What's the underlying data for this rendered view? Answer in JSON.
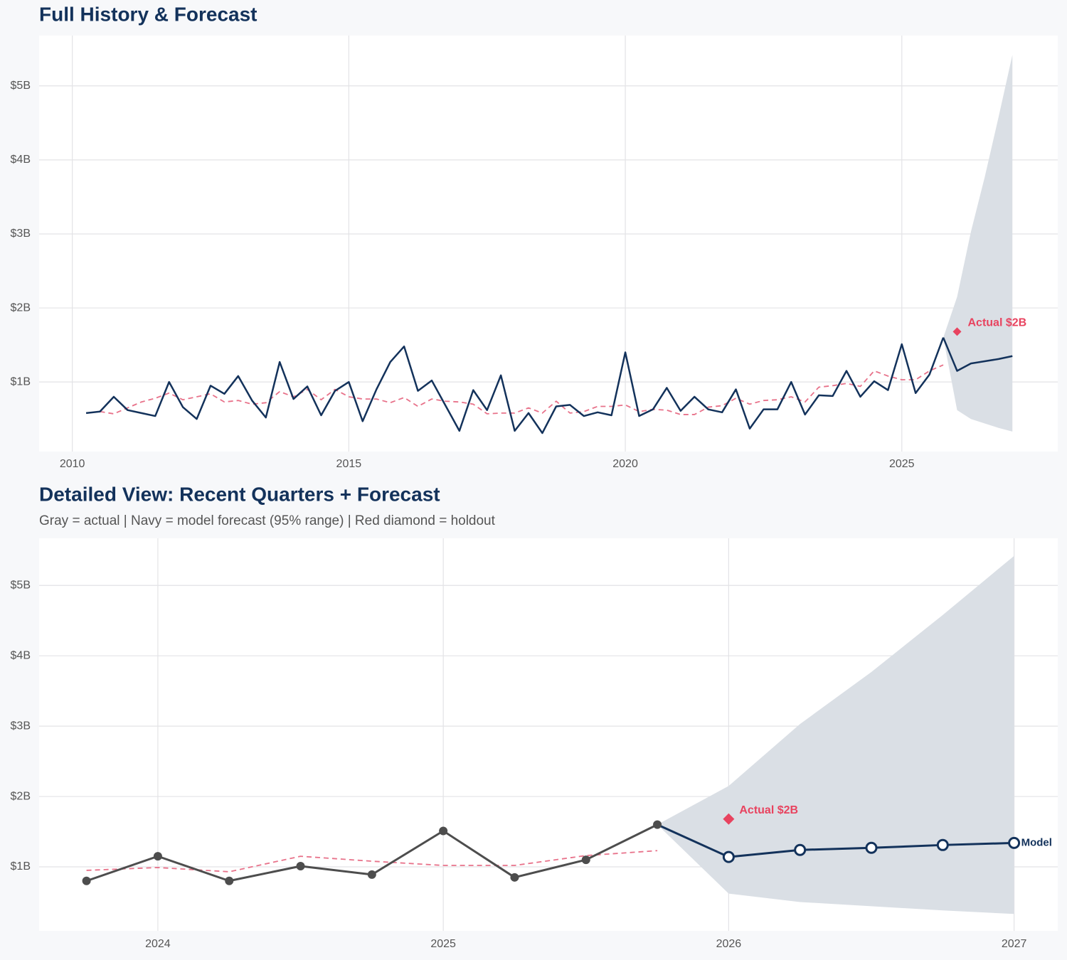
{
  "chart_data": [
    {
      "type": "line",
      "title": "Full History & Forecast",
      "x": [
        2010.25,
        2010.5,
        2010.75,
        2011.0,
        2011.25,
        2011.5,
        2011.75,
        2012.0,
        2012.25,
        2012.5,
        2012.75,
        2013.0,
        2013.25,
        2013.5,
        2013.75,
        2014.0,
        2014.25,
        2014.5,
        2014.75,
        2015.0,
        2015.25,
        2015.5,
        2015.75,
        2016.0,
        2016.25,
        2016.5,
        2016.75,
        2017.0,
        2017.25,
        2017.5,
        2017.75,
        2018.0,
        2018.25,
        2018.5,
        2018.75,
        2019.0,
        2019.25,
        2019.5,
        2019.75,
        2020.0,
        2020.25,
        2020.5,
        2020.75,
        2021.0,
        2021.25,
        2021.5,
        2021.75,
        2022.0,
        2022.25,
        2022.5,
        2022.75,
        2023.0,
        2023.25,
        2023.5,
        2023.75,
        2024.0,
        2024.25,
        2024.5,
        2024.75,
        2025.0,
        2025.25,
        2025.5,
        2025.75,
        2026.0,
        2026.25,
        2026.5,
        2026.75,
        2027.0
      ],
      "xlim": [
        2009.4,
        2027.82
      ],
      "xticks": [
        2010,
        2015,
        2020,
        2025
      ],
      "ylim": [
        0.06,
        5.68
      ],
      "yticks": [
        {
          "value": 1,
          "label": "$1B"
        },
        {
          "value": 2,
          "label": "$2B"
        },
        {
          "value": 3,
          "label": "$3B"
        },
        {
          "value": 4,
          "label": "$4B"
        },
        {
          "value": 5,
          "label": "$5B"
        }
      ],
      "grid": true,
      "band": {
        "color": "#dadfe5",
        "lower": [
          null,
          null,
          null,
          null,
          null,
          null,
          null,
          null,
          null,
          null,
          null,
          null,
          null,
          null,
          null,
          null,
          null,
          null,
          null,
          null,
          null,
          null,
          null,
          null,
          null,
          null,
          null,
          null,
          null,
          null,
          null,
          null,
          null,
          null,
          null,
          null,
          null,
          null,
          null,
          null,
          null,
          null,
          null,
          null,
          null,
          null,
          null,
          null,
          null,
          null,
          null,
          null,
          null,
          null,
          null,
          null,
          null,
          null,
          null,
          null,
          null,
          null,
          1.6,
          0.62,
          0.5,
          0.44,
          0.38,
          0.33
        ],
        "upper": [
          null,
          null,
          null,
          null,
          null,
          null,
          null,
          null,
          null,
          null,
          null,
          null,
          null,
          null,
          null,
          null,
          null,
          null,
          null,
          null,
          null,
          null,
          null,
          null,
          null,
          null,
          null,
          null,
          null,
          null,
          null,
          null,
          null,
          null,
          null,
          null,
          null,
          null,
          null,
          null,
          null,
          null,
          null,
          null,
          null,
          null,
          null,
          null,
          null,
          null,
          null,
          null,
          null,
          null,
          null,
          null,
          null,
          null,
          null,
          null,
          null,
          null,
          1.6,
          2.15,
          3.03,
          3.77,
          4.58,
          5.42
        ]
      },
      "series": [
        {
          "color": "#e8728a",
          "style": "dashed",
          "values": [
            null,
            0.6,
            0.57,
            0.65,
            0.73,
            0.78,
            0.85,
            0.76,
            0.8,
            0.84,
            0.73,
            0.75,
            0.7,
            0.72,
            0.87,
            0.8,
            0.9,
            0.76,
            0.9,
            0.8,
            0.77,
            0.77,
            0.72,
            0.79,
            0.67,
            0.77,
            0.74,
            0.73,
            0.7,
            0.57,
            0.58,
            0.58,
            0.65,
            0.58,
            0.74,
            0.58,
            0.6,
            0.67,
            0.67,
            0.69,
            0.6,
            0.63,
            0.62,
            0.56,
            0.56,
            0.66,
            0.68,
            0.78,
            0.7,
            0.75,
            0.76,
            0.8,
            0.73,
            0.93,
            0.95,
            0.98,
            0.94,
            1.15,
            1.08,
            1.03,
            1.03,
            1.15,
            1.23,
            null,
            null,
            null,
            null,
            null
          ]
        },
        {
          "color": "#13325b",
          "style": "solid",
          "values": [
            0.58,
            0.6,
            0.8,
            0.62,
            0.58,
            0.54,
            1.0,
            0.66,
            0.5,
            0.95,
            0.84,
            1.08,
            0.75,
            0.52,
            1.27,
            0.77,
            0.94,
            0.55,
            0.88,
            1.0,
            0.47,
            0.9,
            1.27,
            1.48,
            0.88,
            1.02,
            0.68,
            0.34,
            0.89,
            0.62,
            1.09,
            0.34,
            0.58,
            0.31,
            0.67,
            0.69,
            0.54,
            0.59,
            0.55,
            1.4,
            0.54,
            0.63,
            0.92,
            0.61,
            0.8,
            0.63,
            0.59,
            0.9,
            0.37,
            0.63,
            0.63,
            1.0,
            0.56,
            0.82,
            0.81,
            1.15,
            0.8,
            1.01,
            0.89,
            1.51,
            0.85,
            1.1,
            1.6,
            null,
            null,
            null,
            null,
            null
          ]
        },
        {
          "color": "#13325b",
          "style": "solid",
          "values": [
            null,
            null,
            null,
            null,
            null,
            null,
            null,
            null,
            null,
            null,
            null,
            null,
            null,
            null,
            null,
            null,
            null,
            null,
            null,
            null,
            null,
            null,
            null,
            null,
            null,
            null,
            null,
            null,
            null,
            null,
            null,
            null,
            null,
            null,
            null,
            null,
            null,
            null,
            null,
            null,
            null,
            null,
            null,
            null,
            null,
            null,
            null,
            null,
            null,
            null,
            null,
            null,
            null,
            null,
            null,
            null,
            null,
            null,
            null,
            null,
            null,
            null,
            1.6,
            1.15,
            1.25,
            1.28,
            1.31,
            1.35
          ]
        }
      ],
      "holdout": {
        "x": 2026.0,
        "value": 1.68,
        "label": "Actual $2B",
        "color": "#e8435f"
      }
    },
    {
      "type": "line",
      "title": "Detailed View: Recent Quarters + Forecast",
      "subtitle": "Gray = actual  |  Navy = model forecast (95% range)  |  Red diamond = holdout",
      "x": [
        2023.75,
        2024.0,
        2024.25,
        2024.5,
        2024.75,
        2025.0,
        2025.25,
        2025.5,
        2025.75,
        2026.0,
        2026.25,
        2026.5,
        2026.75,
        2027.0
      ],
      "xlim": [
        2023.584,
        2027.153
      ],
      "xticks": [
        2024,
        2025,
        2026,
        2027
      ],
      "ylim": [
        0.09,
        5.67
      ],
      "yticks": [
        {
          "value": 1,
          "label": "$1B"
        },
        {
          "value": 2,
          "label": "$2B"
        },
        {
          "value": 3,
          "label": "$3B"
        },
        {
          "value": 4,
          "label": "$4B"
        },
        {
          "value": 5,
          "label": "$5B"
        }
      ],
      "grid": true,
      "band": {
        "color": "#dadfe5",
        "lower": [
          null,
          null,
          null,
          null,
          null,
          null,
          null,
          null,
          1.6,
          0.62,
          0.5,
          0.44,
          0.38,
          0.33
        ],
        "upper": [
          null,
          null,
          null,
          null,
          null,
          null,
          null,
          null,
          1.6,
          2.15,
          3.03,
          3.77,
          4.58,
          5.42
        ]
      },
      "series": [
        {
          "color": "#e8728a",
          "style": "dashed",
          "values": [
            0.95,
            0.99,
            0.93,
            1.15,
            1.08,
            1.02,
            1.02,
            1.16,
            1.23,
            null,
            null,
            null,
            null,
            null
          ]
        },
        {
          "color": "#4d4d4d",
          "style": "solid",
          "markers": "filled",
          "values": [
            0.8,
            1.15,
            0.8,
            1.01,
            0.89,
            1.51,
            0.85,
            1.1,
            1.6,
            null,
            null,
            null,
            null,
            null
          ]
        },
        {
          "color": "#13325b",
          "style": "solid",
          "markers": "open",
          "label": "Model",
          "values": [
            null,
            null,
            null,
            null,
            null,
            null,
            null,
            null,
            1.6,
            1.14,
            1.24,
            1.27,
            1.31,
            1.34
          ]
        }
      ],
      "holdout": {
        "x": 2026.0,
        "value": 1.68,
        "label": "Actual $2B",
        "color": "#e8435f"
      }
    }
  ]
}
